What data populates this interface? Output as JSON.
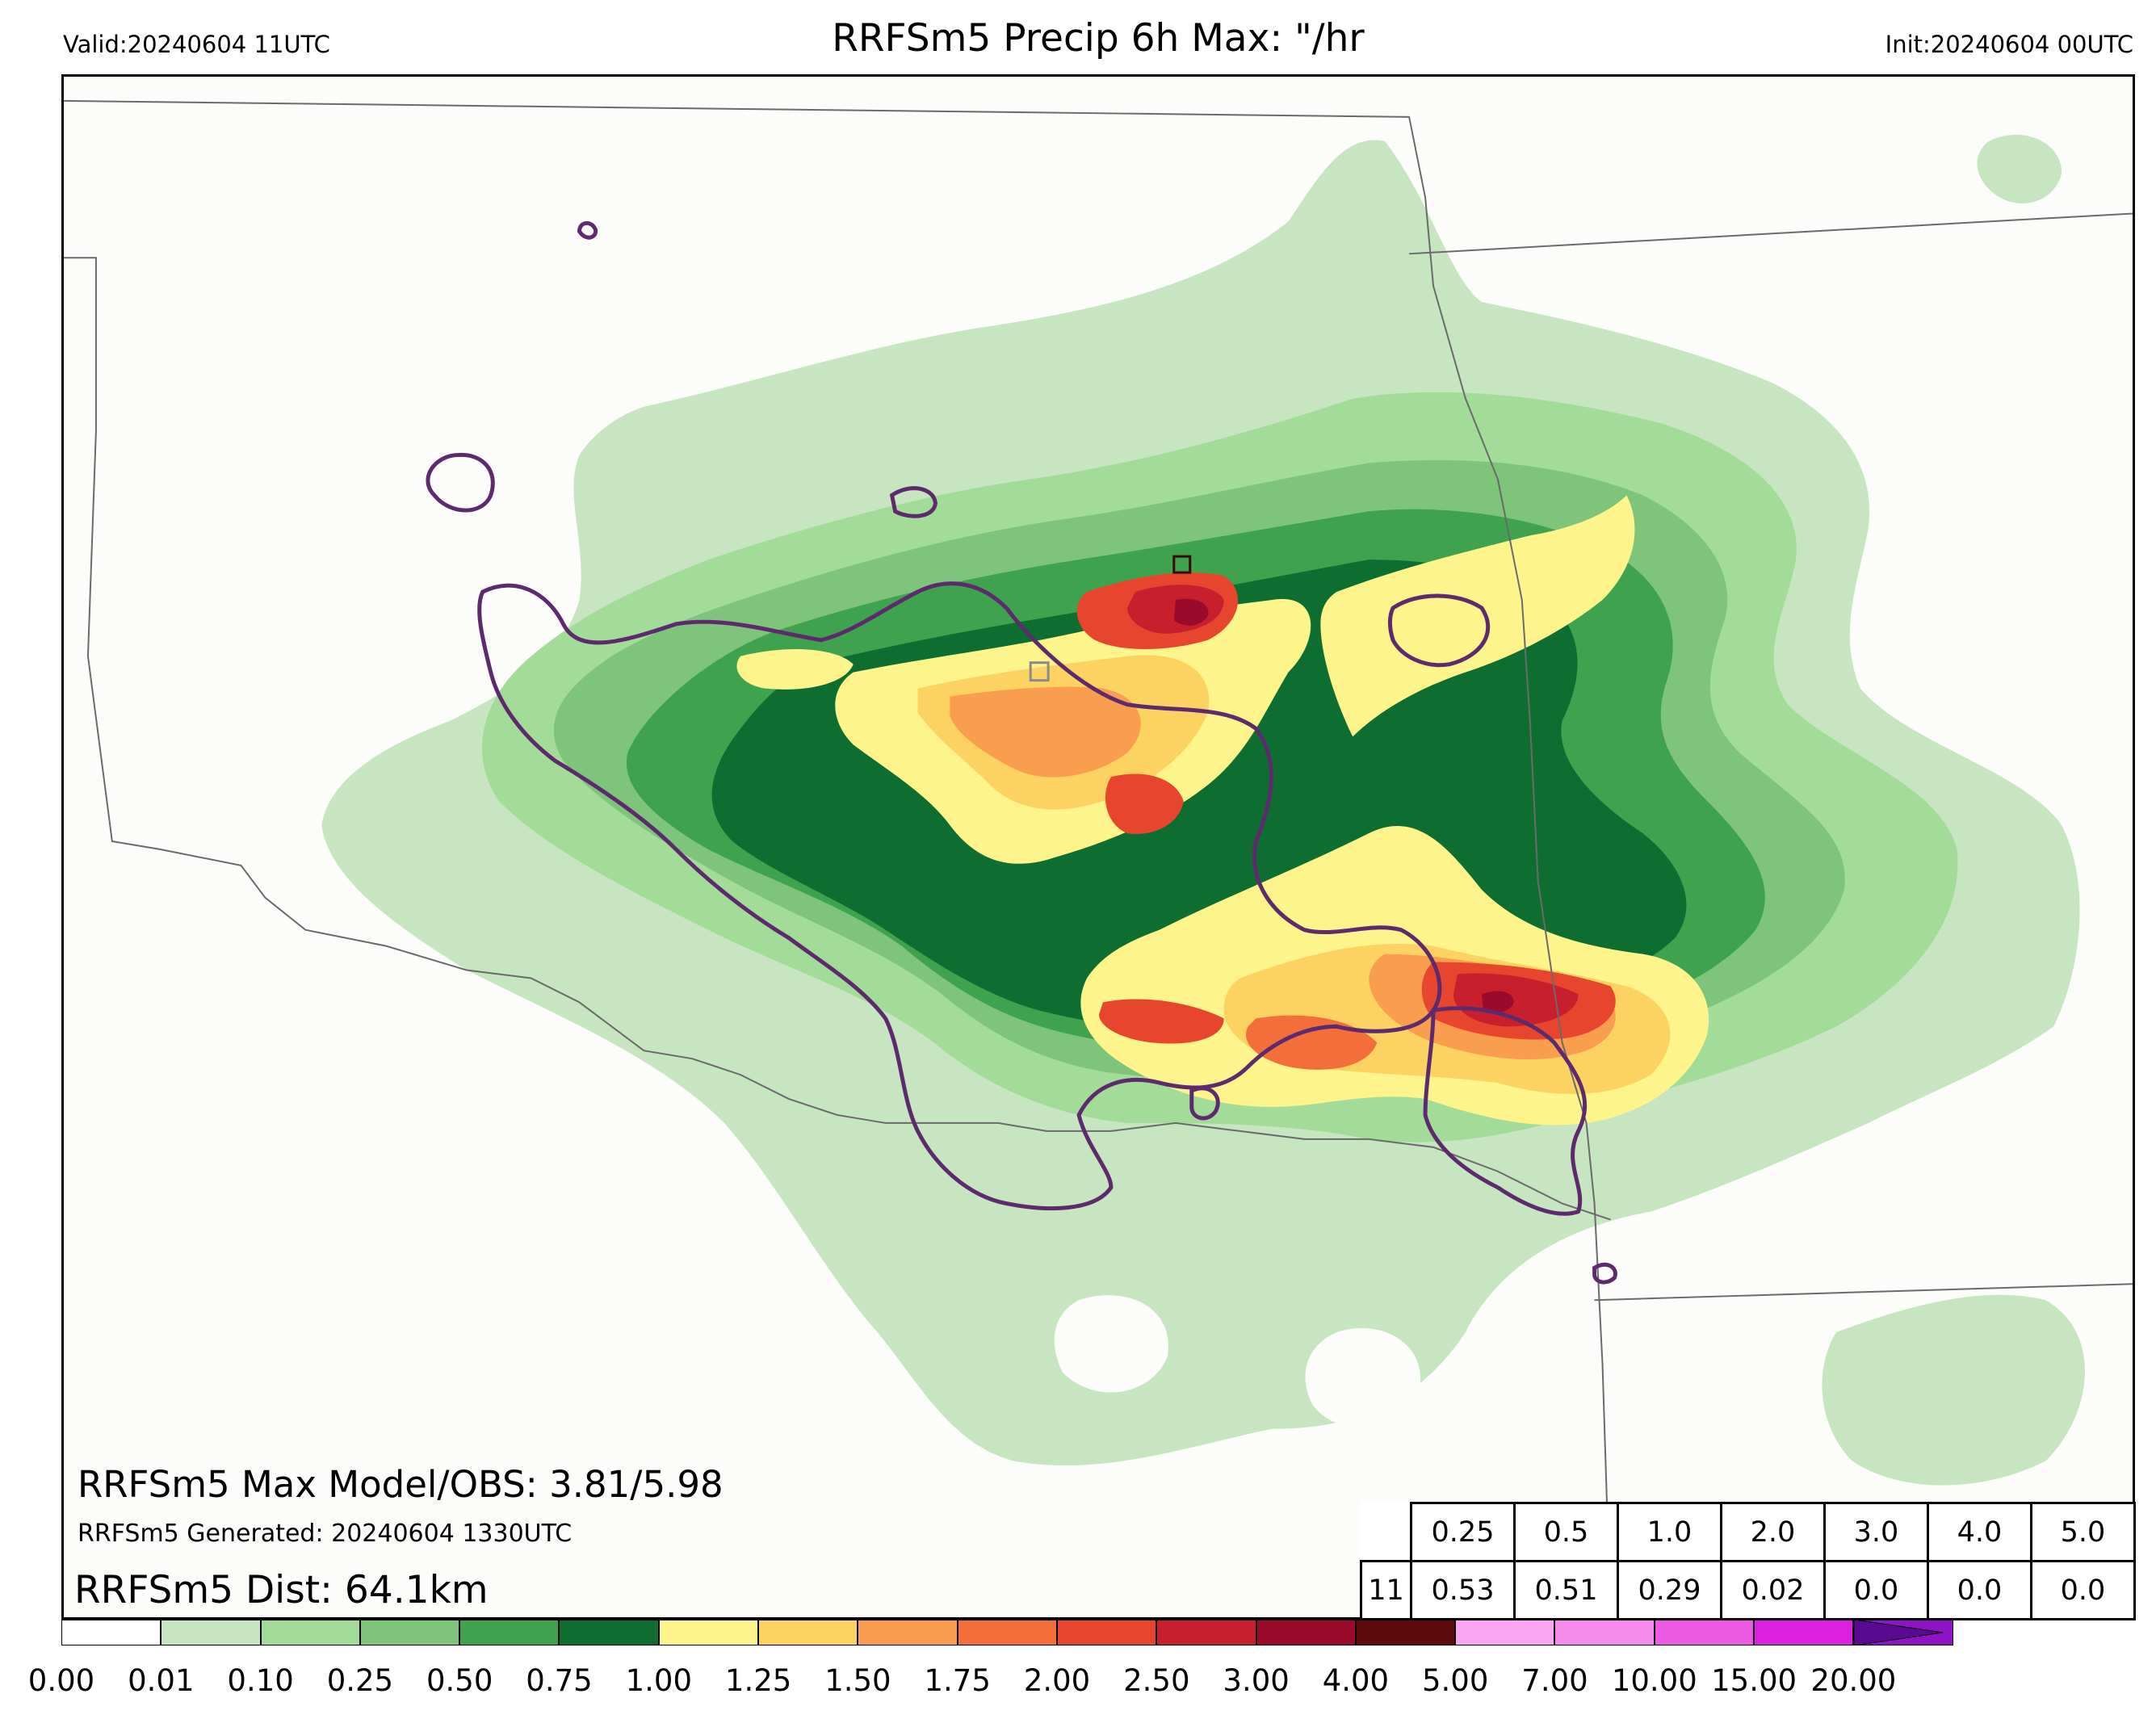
{
  "header": {
    "valid": "Valid:20240604 11UTC",
    "title": "RRFSm5 Precip 6h Max: \"/hr",
    "init": "Init:20240604 00UTC"
  },
  "stats": {
    "max_model_obs": "RRFSm5 Max Model/OBS: 3.81/5.98",
    "generated": "RRFSm5 Generated: 20240604 1330UTC",
    "dist": "RRFSm5 Dist: 64.1km"
  },
  "threshold_table": {
    "thresholds": [
      "0.25",
      "0.5",
      "1.0",
      "2.0",
      "3.0",
      "4.0",
      "5.0"
    ],
    "row_label": "11",
    "values": [
      "0.53",
      "0.51",
      "0.29",
      "0.02",
      "0.0",
      "0.0",
      "0.0"
    ]
  },
  "colorbar": {
    "labels": [
      "0.00",
      "0.01",
      "0.10",
      "0.25",
      "0.50",
      "0.75",
      "1.00",
      "1.25",
      "1.50",
      "1.75",
      "2.00",
      "2.50",
      "3.00",
      "4.00",
      "5.00",
      "7.00",
      "10.00",
      "15.00",
      "20.00"
    ],
    "colors": [
      "#ffffff",
      "#c7e5c0",
      "#a2dc98",
      "#7ec47a",
      "#3ea24e",
      "#0e6e31",
      "#fdf48c",
      "#fcd363",
      "#f99e4e",
      "#f46e3c",
      "#e8452e",
      "#c81f2e",
      "#9b0a2a",
      "#5c0a0c",
      "#f9a6f2",
      "#f58cec",
      "#ec5ae4",
      "#dc20e0",
      "#8c14c4"
    ],
    "arrow_color": "#5a0a90"
  },
  "map_colors": {
    "obs_contour": "#5e2a6e",
    "state_line": "#6a6a6a"
  }
}
